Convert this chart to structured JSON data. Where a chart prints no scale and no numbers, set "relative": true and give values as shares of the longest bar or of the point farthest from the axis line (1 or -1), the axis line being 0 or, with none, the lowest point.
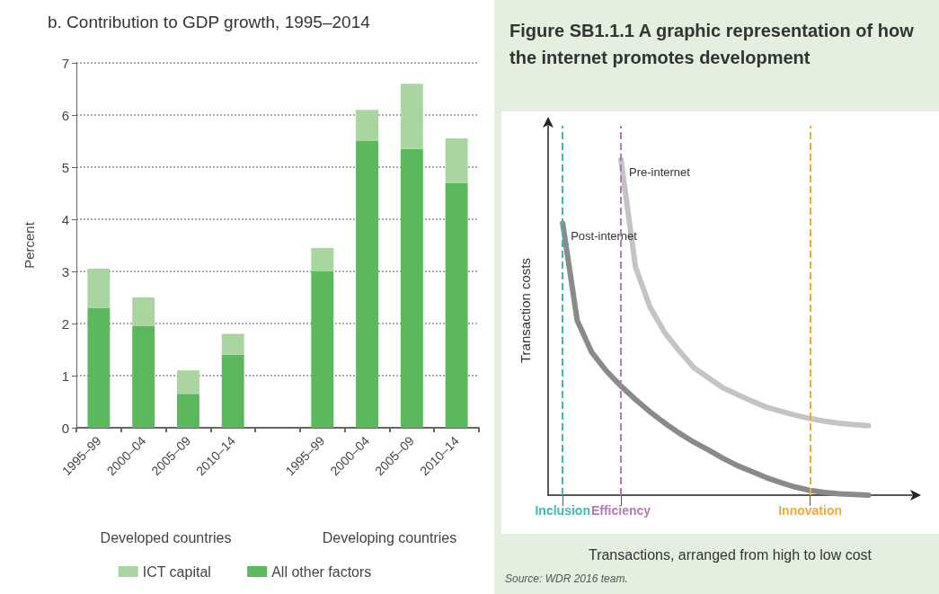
{
  "chart_data": [
    {
      "type": "bar",
      "title": "b. Contribution to GDP growth, 1995–2014",
      "ylabel": "Percent",
      "stacked": true,
      "categories": [
        "1995–99",
        "2000–04",
        "2005–09",
        "2010–14",
        null,
        "1995–99",
        "2000–04",
        "2005–09",
        "2010–14"
      ],
      "series": [
        {
          "name": "All other factors",
          "color": "#5cb85c",
          "values": [
            2.3,
            1.95,
            0.65,
            1.4,
            null,
            3.0,
            5.5,
            5.35,
            4.7
          ]
        },
        {
          "name": "ICT capital",
          "color": "#a8d5a0",
          "values": [
            0.75,
            0.55,
            0.45,
            0.4,
            null,
            0.45,
            0.6,
            1.25,
            0.85
          ]
        }
      ],
      "ylim": [
        0,
        7
      ],
      "yticks": [
        0,
        1,
        2,
        3,
        4,
        5,
        6,
        7
      ],
      "grid": "y",
      "legend": "bottom",
      "annotations": [
        "Developed countries",
        "Developing countries"
      ]
    },
    {
      "type": "line",
      "relative": true,
      "title": "Figure SB1.1.1 A graphic representation of how the internet promotes development",
      "xlabel": "Transactions, arranged from high to low cost",
      "ylabel": "Transaction costs",
      "categories": [
        null,
        "Inclusion",
        null,
        null,
        null,
        "Efficiency",
        null,
        null,
        null,
        null,
        null,
        null,
        null,
        null,
        null,
        null,
        null,
        null,
        "Innovation",
        null,
        null,
        null,
        null,
        null,
        null,
        null
      ],
      "grid": false,
      "legend": false,
      "marker": "none",
      "line_style": "solid",
      "series": [
        {
          "name": "Pre-internet",
          "color": "#c4c4c4",
          "values": [
            null,
            null,
            null,
            null,
            null,
            1,
            0.68,
            0.56,
            0.485,
            0.43,
            0.38,
            0.35,
            0.32,
            0.3,
            0.28,
            0.262,
            0.25,
            0.238,
            0.228,
            0.22,
            0.214,
            0.21,
            0.207,
            null,
            null,
            null
          ]
        },
        {
          "name": "Post-internet",
          "color": "#8a8a8a",
          "values": [
            null,
            0.81,
            0.52,
            0.425,
            0.37,
            0.325,
            0.285,
            0.248,
            0.215,
            0.185,
            0.158,
            0.135,
            0.11,
            0.088,
            0.07,
            0.052,
            0.037,
            0.024,
            0.014,
            0.008,
            0.004,
            0.002,
            0,
            null,
            null,
            null
          ]
        }
      ],
      "ref_lines": [
        {
          "axis": "x",
          "value": "Inclusion",
          "color": "#3bbcb0",
          "line_style": "dashed"
        },
        {
          "axis": "x",
          "value": "Efficiency",
          "color": "#b57ab5",
          "line_style": "dashed"
        },
        {
          "axis": "x",
          "value": "Innovation",
          "color": "#f2a93b",
          "line_style": "dashed"
        }
      ],
      "annotations": [
        "Source: WDR 2016 team."
      ]
    }
  ]
}
